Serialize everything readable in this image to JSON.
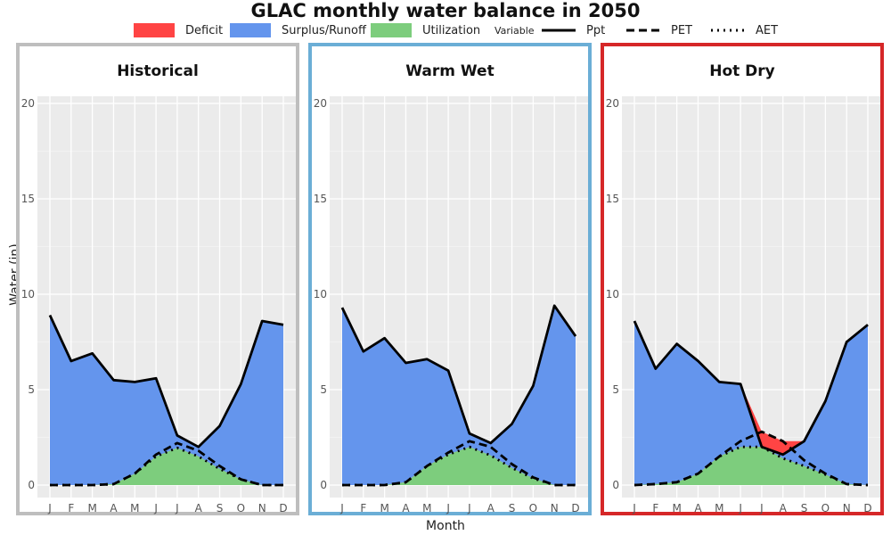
{
  "title": "GLAC monthly water balance in 2050",
  "legend": {
    "fill_items": [
      {
        "label": "Deficit",
        "color": "#ff4444"
      },
      {
        "label": "Surplus/Runoff",
        "color": "#6495ed"
      },
      {
        "label": "Utilization",
        "color": "#7dcd7d"
      }
    ],
    "variable_title": "Variable",
    "line_items": [
      {
        "label": "Ppt",
        "dash": "solid"
      },
      {
        "label": "PET",
        "dash": "dashed"
      },
      {
        "label": "AET",
        "dash": "dotted"
      }
    ]
  },
  "axis": {
    "xlabel": "Month",
    "ylabel": "Water (in)"
  },
  "chart_data": [
    {
      "type": "area",
      "title": "Historical",
      "border_color": "#bebebe",
      "categories": [
        "J",
        "F",
        "M",
        "A",
        "M",
        "J",
        "J",
        "A",
        "S",
        "O",
        "N",
        "D"
      ],
      "ylim": [
        0,
        20
      ],
      "yticks": [
        0,
        5,
        10,
        15,
        20
      ],
      "series": [
        {
          "name": "Ppt",
          "values": [
            8.9,
            6.5,
            6.9,
            5.5,
            5.4,
            5.6,
            2.6,
            2.0,
            3.1,
            5.3,
            8.6,
            8.4
          ]
        },
        {
          "name": "PET",
          "values": [
            0.0,
            0.0,
            0.0,
            0.05,
            0.6,
            1.6,
            2.2,
            1.8,
            1.0,
            0.3,
            0.0,
            0.0
          ]
        },
        {
          "name": "AET",
          "values": [
            0.0,
            0.0,
            0.0,
            0.05,
            0.6,
            1.5,
            1.95,
            1.5,
            0.85,
            0.3,
            0.0,
            0.0
          ]
        }
      ]
    },
    {
      "type": "area",
      "title": "Warm Wet",
      "border_color": "#6baed6",
      "categories": [
        "J",
        "F",
        "M",
        "A",
        "M",
        "J",
        "J",
        "A",
        "S",
        "O",
        "N",
        "D"
      ],
      "ylim": [
        0,
        20
      ],
      "yticks": [
        0,
        5,
        10,
        15,
        20
      ],
      "series": [
        {
          "name": "Ppt",
          "values": [
            9.3,
            7.0,
            7.7,
            6.4,
            6.6,
            6.0,
            2.7,
            2.2,
            3.2,
            5.2,
            9.4,
            7.8
          ]
        },
        {
          "name": "PET",
          "values": [
            0.0,
            0.0,
            0.0,
            0.15,
            1.0,
            1.7,
            2.3,
            2.0,
            1.1,
            0.4,
            0.0,
            0.0
          ]
        },
        {
          "name": "AET",
          "values": [
            0.0,
            0.0,
            0.0,
            0.15,
            1.0,
            1.6,
            2.0,
            1.55,
            0.9,
            0.35,
            0.0,
            0.0
          ]
        }
      ]
    },
    {
      "type": "area",
      "title": "Hot Dry",
      "border_color": "#d62728",
      "categories": [
        "J",
        "F",
        "M",
        "A",
        "M",
        "J",
        "J",
        "A",
        "S",
        "O",
        "N",
        "D"
      ],
      "ylim": [
        0,
        20
      ],
      "yticks": [
        0,
        5,
        10,
        15,
        20
      ],
      "series": [
        {
          "name": "Ppt",
          "values": [
            8.6,
            6.1,
            7.4,
            6.5,
            5.4,
            5.3,
            2.0,
            1.6,
            2.3,
            4.4,
            7.5,
            8.4
          ]
        },
        {
          "name": "PET",
          "values": [
            0.0,
            0.05,
            0.15,
            0.6,
            1.5,
            2.3,
            2.8,
            2.3,
            1.3,
            0.6,
            0.05,
            0.0
          ]
        },
        {
          "name": "AET",
          "values": [
            0.0,
            0.05,
            0.15,
            0.6,
            1.5,
            2.0,
            2.0,
            1.4,
            1.0,
            0.55,
            0.05,
            0.0
          ]
        }
      ]
    }
  ]
}
